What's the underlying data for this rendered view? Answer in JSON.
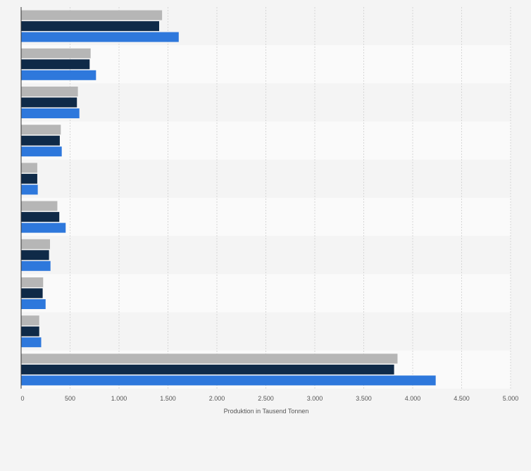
{
  "chart_data": {
    "type": "bar",
    "orientation": "horizontal",
    "xlabel": "Produktion in Tausend Tonnen",
    "xlim": [
      0,
      5000
    ],
    "x_ticks": [
      "0",
      "500",
      "1.000",
      "1.500",
      "2.000",
      "2.500",
      "3.000",
      "3.500",
      "4.000",
      "4.500",
      "5.000"
    ],
    "x_tick_values": [
      0,
      500,
      1000,
      1500,
      2000,
      2500,
      3000,
      3500,
      4000,
      4500,
      5000
    ],
    "grid": true,
    "legend": "none",
    "series": [
      {
        "color": "#b6b6b6",
        "values": [
          1440,
          710,
          580,
          405,
          165,
          370,
          295,
          225,
          185,
          3845
        ]
      },
      {
        "color": "#0f2a48",
        "values": [
          1410,
          700,
          570,
          395,
          165,
          390,
          285,
          220,
          185,
          3810
        ]
      },
      {
        "color": "#2e78dc",
        "values": [
          1610,
          765,
          595,
          415,
          170,
          455,
          300,
          250,
          205,
          4235
        ]
      }
    ]
  }
}
